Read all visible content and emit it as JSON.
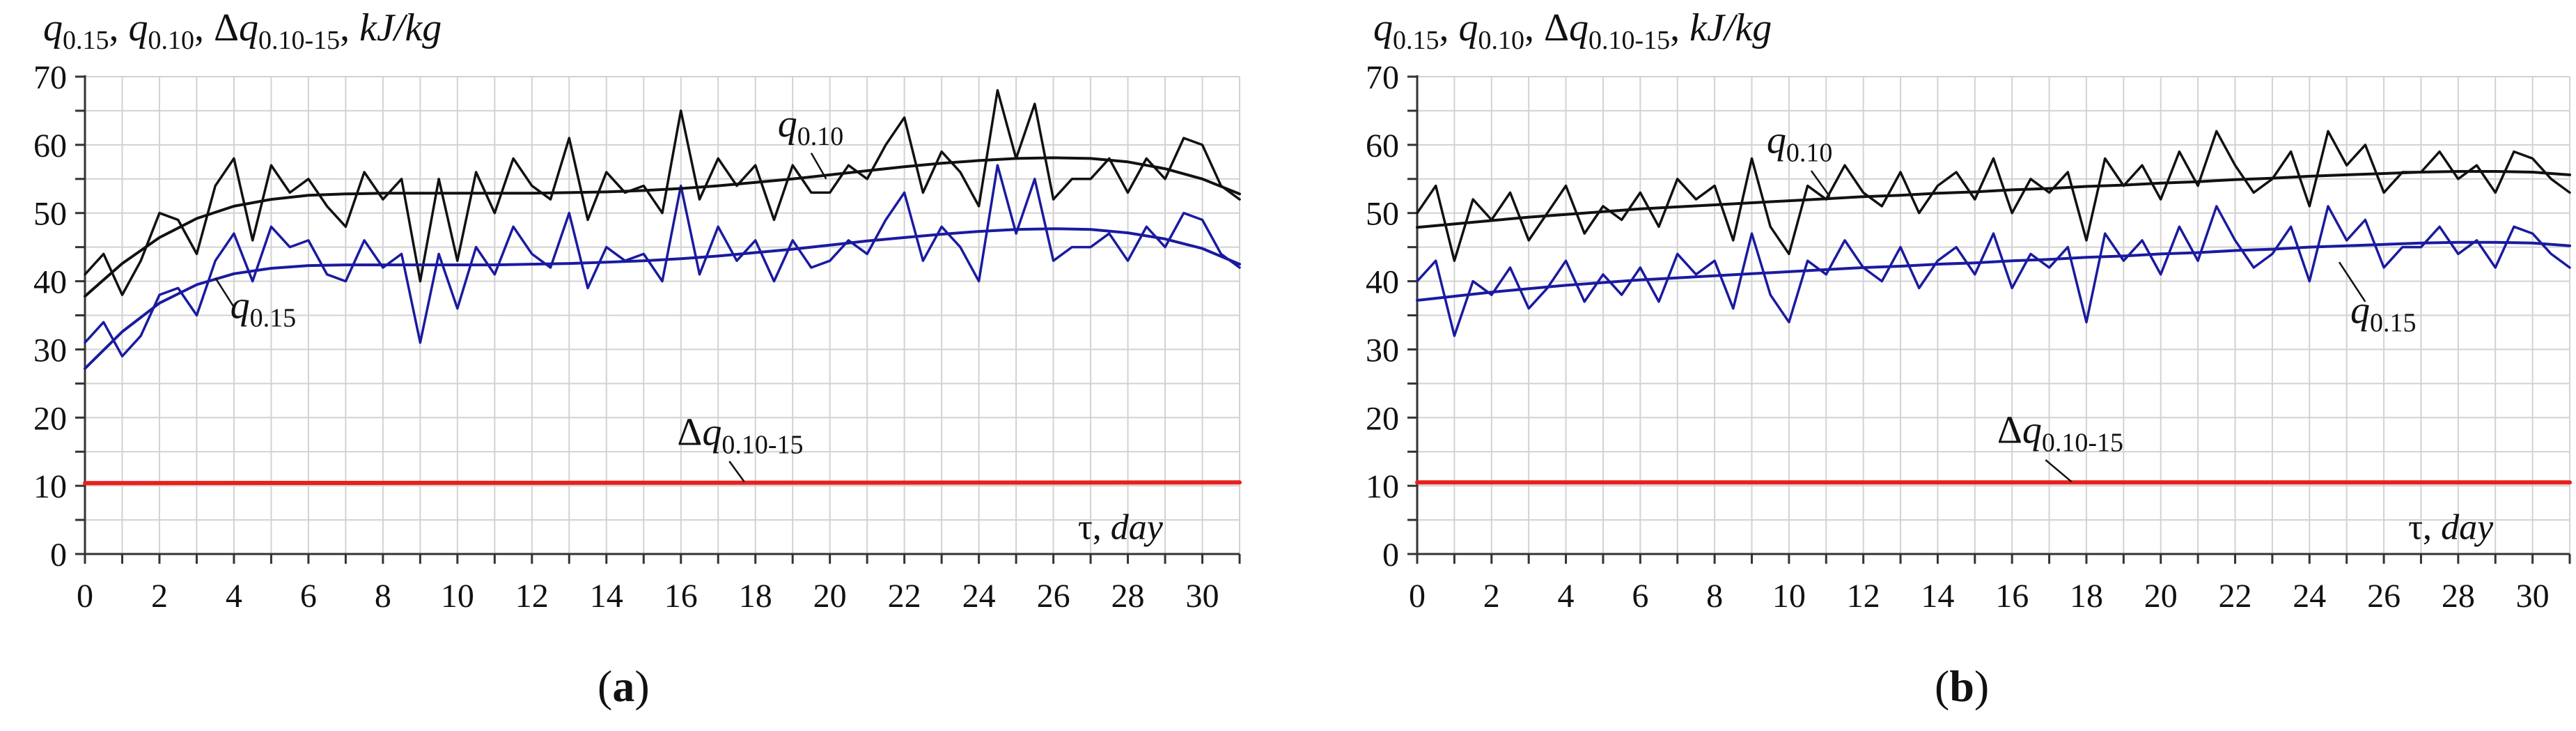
{
  "figure": {
    "panel_a_letter": "a",
    "panel_b_letter": "b"
  },
  "chart_data": [
    {
      "type": "line",
      "panel": "a",
      "ylabel_parts": [
        "q",
        "0.15",
        ", ",
        "q",
        "0.10",
        ", Δ",
        "q",
        "0.10-15",
        ", ",
        "kJ/kg"
      ],
      "xlabel_tau": "τ,",
      "xlabel_unit": "day",
      "xlim": [
        0,
        31
      ],
      "ylim": [
        0,
        70
      ],
      "xticks": [
        0,
        2,
        4,
        6,
        8,
        10,
        12,
        14,
        16,
        18,
        20,
        22,
        24,
        26,
        28,
        30
      ],
      "yticks": [
        0,
        10,
        20,
        30,
        40,
        50,
        60,
        70
      ],
      "grid": true,
      "colors": {
        "q010": "#111111",
        "q015": "#1a1aa0",
        "dq": "#e8201c"
      },
      "annotations": {
        "q010": {
          "base": "q",
          "sub": "0.10",
          "at_x": 18.6,
          "at_y": 61.2
        },
        "q015": {
          "base": "q",
          "sub": "0.15",
          "at_x": 3.9,
          "at_y": 34.6
        },
        "dq": {
          "pre": "Δ",
          "base": "q",
          "sub": "0.10-15",
          "at_x": 15.9,
          "at_y": 16.0
        }
      },
      "series": [
        {
          "name": "q0.10",
          "x": [
            0,
            0.5,
            1,
            1.5,
            2,
            2.5,
            3,
            3.5,
            4,
            4.5,
            5,
            5.5,
            6,
            6.5,
            7,
            7.5,
            8,
            8.5,
            9,
            9.5,
            10,
            10.5,
            11,
            11.5,
            12,
            12.5,
            13,
            13.5,
            14,
            14.5,
            15,
            15.5,
            16,
            16.5,
            17,
            17.5,
            18,
            18.5,
            19,
            19.5,
            20,
            20.5,
            21,
            21.5,
            22,
            22.5,
            23,
            23.5,
            24,
            24.5,
            25,
            25.5,
            26,
            26.5,
            27,
            27.5,
            28,
            28.5,
            29,
            29.5,
            30,
            30.5,
            31
          ],
          "values": [
            41,
            44,
            38,
            43,
            50,
            49,
            44,
            54,
            58,
            46,
            57,
            53,
            55,
            51,
            48,
            56,
            52,
            55,
            40,
            55,
            43,
            56,
            50,
            58,
            54,
            52,
            61,
            49,
            56,
            53,
            54,
            50,
            65,
            52,
            58,
            54,
            57,
            49,
            57,
            53,
            53,
            57,
            55,
            60,
            64,
            53,
            59,
            56,
            51,
            68,
            58,
            66,
            52,
            55,
            55,
            58,
            53,
            58,
            55,
            61,
            60,
            54,
            52
          ]
        },
        {
          "name": "q0.15",
          "x": [
            0,
            0.5,
            1,
            1.5,
            2,
            2.5,
            3,
            3.5,
            4,
            4.5,
            5,
            5.5,
            6,
            6.5,
            7,
            7.5,
            8,
            8.5,
            9,
            9.5,
            10,
            10.5,
            11,
            11.5,
            12,
            12.5,
            13,
            13.5,
            14,
            14.5,
            15,
            15.5,
            16,
            16.5,
            17,
            17.5,
            18,
            18.5,
            19,
            19.5,
            20,
            20.5,
            21,
            21.5,
            22,
            22.5,
            23,
            23.5,
            24,
            24.5,
            25,
            25.5,
            26,
            26.5,
            27,
            27.5,
            28,
            28.5,
            29,
            29.5,
            30,
            30.5,
            31
          ],
          "values": [
            31,
            34,
            29,
            32,
            38,
            39,
            35,
            43,
            47,
            40,
            48,
            45,
            46,
            41,
            40,
            46,
            42,
            44,
            31,
            44,
            36,
            45,
            41,
            48,
            44,
            42,
            50,
            39,
            45,
            43,
            44,
            40,
            54,
            41,
            48,
            43,
            46,
            40,
            46,
            42,
            43,
            46,
            44,
            49,
            53,
            43,
            48,
            45,
            40,
            57,
            47,
            55,
            43,
            45,
            45,
            47,
            43,
            48,
            45,
            50,
            49,
            44,
            42
          ]
        },
        {
          "name": "q0.10 trend",
          "x": [
            0,
            1,
            2,
            3,
            4,
            5,
            6,
            7,
            8,
            9,
            10,
            11,
            12,
            13,
            14,
            15,
            16,
            17,
            18,
            19,
            20,
            21,
            22,
            23,
            24,
            25,
            26,
            27,
            28,
            29,
            30,
            31
          ],
          "values": [
            37.8,
            42.6,
            46.4,
            49.2,
            51.0,
            52.0,
            52.6,
            52.8,
            52.9,
            52.9,
            52.9,
            52.9,
            52.9,
            53.0,
            53.1,
            53.3,
            53.6,
            54.0,
            54.5,
            55.0,
            55.6,
            56.2,
            56.8,
            57.3,
            57.7,
            58.0,
            58.1,
            58.0,
            57.5,
            56.5,
            55.0,
            52.8
          ]
        },
        {
          "name": "q0.15 trend",
          "x": [
            0,
            1,
            2,
            3,
            4,
            5,
            6,
            7,
            8,
            9,
            10,
            11,
            12,
            13,
            14,
            15,
            16,
            17,
            18,
            19,
            20,
            21,
            22,
            23,
            24,
            25,
            26,
            27,
            28,
            29,
            30,
            31
          ],
          "values": [
            27.2,
            32.6,
            36.8,
            39.5,
            41.1,
            41.9,
            42.3,
            42.4,
            42.4,
            42.4,
            42.4,
            42.4,
            42.5,
            42.6,
            42.8,
            43.0,
            43.3,
            43.7,
            44.2,
            44.7,
            45.3,
            45.9,
            46.4,
            46.9,
            47.3,
            47.6,
            47.7,
            47.6,
            47.1,
            46.2,
            44.8,
            42.5
          ]
        },
        {
          "name": "Δq0.10-15",
          "x": [
            0,
            31
          ],
          "values": [
            10.4,
            10.5
          ]
        }
      ]
    },
    {
      "type": "line",
      "panel": "b",
      "ylabel_parts": [
        "q",
        "0.15",
        ", ",
        "q",
        "0.10",
        ", Δ",
        "q",
        "0.10-15",
        ", ",
        "kJ/kg"
      ],
      "xlabel_tau": "τ,",
      "xlabel_unit": "day",
      "xlim": [
        0,
        31
      ],
      "ylim": [
        0,
        70
      ],
      "xticks": [
        0,
        2,
        4,
        6,
        8,
        10,
        12,
        14,
        16,
        18,
        20,
        22,
        24,
        26,
        28,
        30
      ],
      "yticks": [
        0,
        10,
        20,
        30,
        40,
        50,
        60,
        70
      ],
      "grid": true,
      "colors": {
        "q010": "#111111",
        "q015": "#1a1aa0",
        "dq": "#e8201c"
      },
      "annotations": {
        "q010": {
          "base": "q",
          "sub": "0.10",
          "at_x": 9.4,
          "at_y": 58.8
        },
        "q015": {
          "base": "q",
          "sub": "0.15",
          "at_x": 25.1,
          "at_y": 33.9
        },
        "dq": {
          "pre": "Δ",
          "base": "q",
          "sub": "0.10-15",
          "at_x": 15.6,
          "at_y": 16.3
        }
      },
      "series": [
        {
          "name": "q0.10",
          "x": [
            0,
            0.5,
            1,
            1.5,
            2,
            2.5,
            3,
            3.5,
            4,
            4.5,
            5,
            5.5,
            6,
            6.5,
            7,
            7.5,
            8,
            8.5,
            9,
            9.5,
            10,
            10.5,
            11,
            11.5,
            12,
            12.5,
            13,
            13.5,
            14,
            14.5,
            15,
            15.5,
            16,
            16.5,
            17,
            17.5,
            18,
            18.5,
            19,
            19.5,
            20,
            20.5,
            21,
            21.5,
            22,
            22.5,
            23,
            23.5,
            24,
            24.5,
            25,
            25.5,
            26,
            26.5,
            27,
            27.5,
            28,
            28.5,
            29,
            29.5,
            30,
            30.5,
            31
          ],
          "values": [
            50,
            54,
            43,
            52,
            49,
            53,
            46,
            50,
            54,
            47,
            51,
            49,
            53,
            48,
            55,
            52,
            54,
            46,
            58,
            48,
            44,
            54,
            52,
            57,
            53,
            51,
            56,
            50,
            54,
            56,
            52,
            58,
            50,
            55,
            53,
            56,
            46,
            58,
            54,
            57,
            52,
            59,
            54,
            62,
            57,
            53,
            55,
            59,
            51,
            62,
            57,
            60,
            53,
            56,
            56,
            59,
            55,
            57,
            53,
            59,
            58,
            55,
            53
          ]
        },
        {
          "name": "q0.15",
          "x": [
            0,
            0.5,
            1,
            1.5,
            2,
            2.5,
            3,
            3.5,
            4,
            4.5,
            5,
            5.5,
            6,
            6.5,
            7,
            7.5,
            8,
            8.5,
            9,
            9.5,
            10,
            10.5,
            11,
            11.5,
            12,
            12.5,
            13,
            13.5,
            14,
            14.5,
            15,
            15.5,
            16,
            16.5,
            17,
            17.5,
            18,
            18.5,
            19,
            19.5,
            20,
            20.5,
            21,
            21.5,
            22,
            22.5,
            23,
            23.5,
            24,
            24.5,
            25,
            25.5,
            26,
            26.5,
            27,
            27.5,
            28,
            28.5,
            29,
            29.5,
            30,
            30.5,
            31
          ],
          "values": [
            40,
            43,
            32,
            40,
            38,
            42,
            36,
            39,
            43,
            37,
            41,
            38,
            42,
            37,
            44,
            41,
            43,
            36,
            47,
            38,
            34,
            43,
            41,
            46,
            42,
            40,
            45,
            39,
            43,
            45,
            41,
            47,
            39,
            44,
            42,
            45,
            34,
            47,
            43,
            46,
            41,
            48,
            43,
            51,
            46,
            42,
            44,
            48,
            40,
            51,
            46,
            49,
            42,
            45,
            45,
            48,
            44,
            46,
            42,
            48,
            47,
            44,
            42
          ]
        },
        {
          "name": "q0.10 trend",
          "x": [
            0,
            1,
            2,
            3,
            4,
            5,
            6,
            7,
            8,
            9,
            10,
            11,
            12,
            13,
            14,
            15,
            16,
            17,
            18,
            19,
            20,
            21,
            22,
            23,
            24,
            25,
            26,
            27,
            28,
            29,
            30,
            31
          ],
          "values": [
            47.9,
            48.4,
            48.9,
            49.4,
            49.8,
            50.2,
            50.6,
            50.9,
            51.2,
            51.5,
            51.8,
            52.1,
            52.4,
            52.6,
            52.9,
            53.1,
            53.4,
            53.6,
            53.9,
            54.1,
            54.4,
            54.6,
            54.9,
            55.1,
            55.4,
            55.6,
            55.8,
            56.0,
            56.1,
            56.1,
            56.0,
            55.6
          ]
        },
        {
          "name": "q0.15 trend",
          "x": [
            0,
            1,
            2,
            3,
            4,
            5,
            6,
            7,
            8,
            9,
            10,
            11,
            12,
            13,
            14,
            15,
            16,
            17,
            18,
            19,
            20,
            21,
            22,
            23,
            24,
            25,
            26,
            27,
            28,
            29,
            30,
            31
          ],
          "values": [
            37.2,
            37.8,
            38.4,
            38.9,
            39.4,
            39.8,
            40.2,
            40.5,
            40.8,
            41.1,
            41.4,
            41.7,
            42.0,
            42.2,
            42.5,
            42.7,
            43.0,
            43.2,
            43.5,
            43.7,
            44.0,
            44.2,
            44.5,
            44.7,
            45.0,
            45.2,
            45.4,
            45.6,
            45.7,
            45.7,
            45.6,
            45.2
          ]
        },
        {
          "name": "Δq0.10-15",
          "x": [
            0,
            31
          ],
          "values": [
            10.5,
            10.5
          ]
        }
      ]
    }
  ]
}
